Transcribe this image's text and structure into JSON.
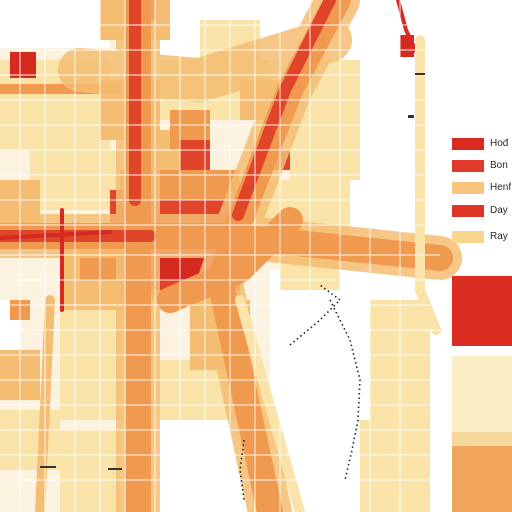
{
  "legend": {
    "items": [
      {
        "label": "Hođ",
        "color": "#d92b24"
      },
      {
        "label": "Bon",
        "color": "#e03a2a"
      },
      {
        "label": "Henf",
        "color": "#f7c57e"
      },
      {
        "label": "Day",
        "color": "#de3526"
      },
      {
        "label": "Ray",
        "color": "#f8d58c"
      }
    ]
  },
  "color_scale": [
    {
      "color": "#db2d22"
    },
    {
      "color": "#fbeec5"
    },
    {
      "color": "#f6d89c"
    },
    {
      "color": "#f0a45c"
    }
  ],
  "colors": {
    "background": "#fbf3e0",
    "blank": "#ffffff",
    "light": "#f9e3a8",
    "mid": "#f5bd72",
    "orange": "#f09a4f",
    "red": "#e0452a",
    "deep_red": "#d42a1f",
    "street": "#ffffff",
    "dotted_path": "#222222"
  }
}
